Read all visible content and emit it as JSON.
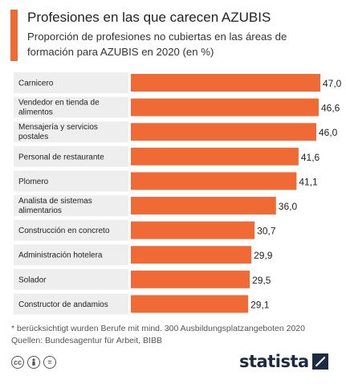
{
  "header": {
    "title": "Profesiones en las que carecen AZUBIS",
    "subtitle": "Proporción de profesiones no cubiertas en las áreas de formación para AZUBIS en 2020 (en %)"
  },
  "chart_data": {
    "type": "bar",
    "orientation": "horizontal",
    "title": "Profesiones en las que carecen AZUBIS",
    "subtitle": "Proporción de profesiones no cubiertas en las áreas de formación para AZUBIS en 2020 (en %)",
    "categories": [
      "Carnicero",
      "Vendedor en tienda de alimentos",
      "Mensajería y servicios postales",
      "Personal de restaurante",
      "Plomero",
      "Analista de sistemas alimentarios",
      "Construcción en concreto",
      "Administración hotelera",
      "Solador",
      "Constructor de andamios"
    ],
    "category_lines": [
      [
        "Carnicero"
      ],
      [
        "Vendedor en tienda de",
        "alimentos"
      ],
      [
        "Mensajería y servicios",
        "postales"
      ],
      [
        "Personal de restaurante"
      ],
      [
        "Plomero"
      ],
      [
        "Analista de sistemas",
        "alimentarios"
      ],
      [
        "Construcción en concreto"
      ],
      [
        "Administración hotelera"
      ],
      [
        "Solador"
      ],
      [
        "Constructor de andamios"
      ]
    ],
    "values": [
      47.0,
      46.6,
      46.0,
      41.6,
      41.1,
      36.0,
      30.7,
      29.9,
      29.5,
      29.1
    ],
    "value_labels": [
      "47,0",
      "46,6",
      "46,0",
      "41,6",
      "41,1",
      "36,0",
      "30,7",
      "29,9",
      "29,5",
      "29,1"
    ],
    "xlim": [
      0,
      47
    ],
    "bar_color": "#ef6a34",
    "label_bg_color": "#eeeeee"
  },
  "footer": {
    "note": "* berücksichtigt wurden Berufe mit mind. 300 Ausbildungsplatzangeboten 2020",
    "source": "Quellen: Bundesagentur für Arbeit, BIBB",
    "license_icons": [
      "cc-icon",
      "by-icon",
      "nd-icon"
    ],
    "brand": "statista"
  }
}
